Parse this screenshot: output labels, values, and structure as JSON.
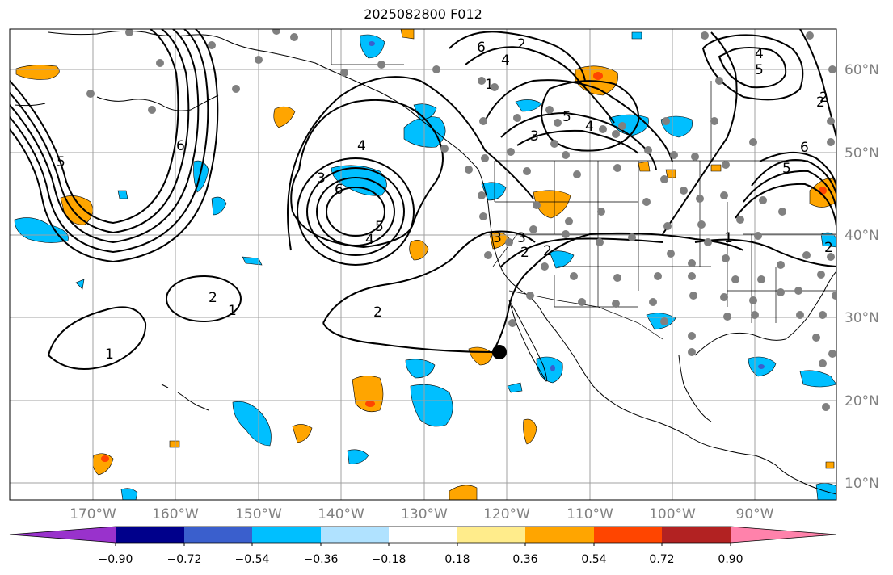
{
  "title": "2025082800 F012",
  "lon_labels": [
    "170°W",
    "160°W",
    "150°W",
    "140°W",
    "130°W",
    "120°W",
    "110°W",
    "100°W",
    "90°W"
  ],
  "lat_labels": [
    "60°N",
    "50°N",
    "40°N",
    "30°N",
    "20°N",
    "10°N"
  ],
  "colorbar": {
    "tick_labels": [
      "−0.90",
      "−0.72",
      "−0.54",
      "−0.36",
      "−0.18",
      "0.18",
      "0.36",
      "0.54",
      "0.72",
      "0.90"
    ],
    "colors": [
      "#9932cc",
      "#00008b",
      "#3a5fcd",
      "#00bfff",
      "#b0e2ff",
      "#ffffff",
      "#ffec8b",
      "#ffa500",
      "#ff4500",
      "#b22222",
      "#ff82ab"
    ]
  },
  "contour_labels": [
    "6",
    "4",
    "2",
    "5",
    "4",
    "5",
    "3",
    "6",
    "5",
    "2",
    "6",
    "5",
    "4",
    "2",
    "1",
    "4",
    "3",
    "6",
    "4",
    "5",
    "3",
    "2",
    "3",
    "2",
    "2",
    "1",
    "2",
    "2",
    "1",
    "1"
  ],
  "colors": {
    "warm": "#ffa500",
    "cool": "#00bfff",
    "dark_cool": "#3a5fcd",
    "hot": "#ff4500",
    "contour": "#000000",
    "grid": "#a0a0a0",
    "station": "#808080"
  }
}
